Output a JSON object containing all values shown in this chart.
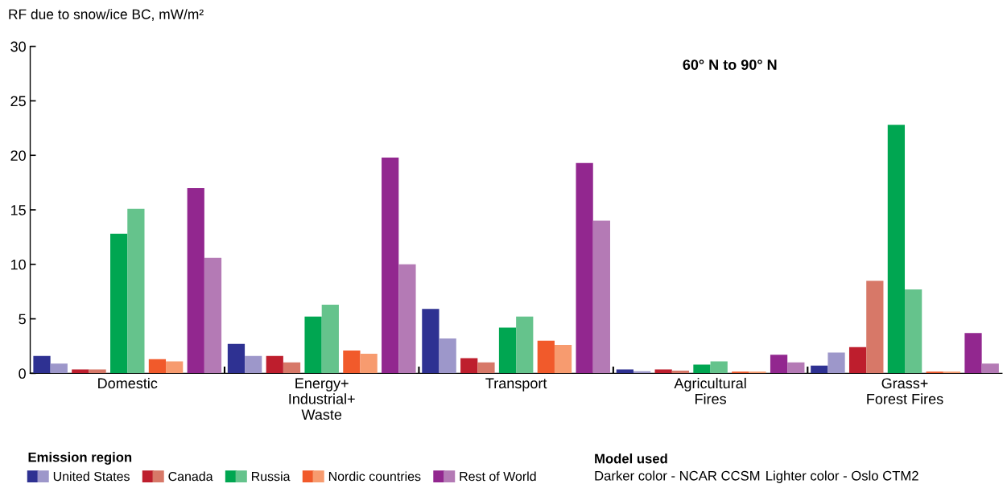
{
  "chart_data": {
    "type": "bar",
    "subtitle": "60° N to 90° N",
    "ylabel": "RF due to snow/ice BC, mW/m²",
    "legend_title": "Emission region",
    "legend": "bottom left",
    "categories": [
      "Domestic",
      "Energy+\nIndustrial+\nWaste",
      "Transport",
      "Agricultural\nFires",
      "Grass+\nForest Fires"
    ],
    "series": [
      {
        "name": "United States",
        "color": "#2e3192",
        "values": [
          1.6,
          2.7,
          5.9,
          0.35,
          0.7
        ]
      },
      {
        "color": "#9d97ca",
        "values": [
          0.9,
          1.6,
          3.2,
          0.2,
          1.9
        ]
      },
      {
        "name": "Canada",
        "color": "#be1e2d",
        "values": [
          0.35,
          1.6,
          1.4,
          0.35,
          2.4
        ]
      },
      {
        "color": "#d77868",
        "values": [
          0.35,
          1.0,
          1.0,
          0.25,
          8.5
        ]
      },
      {
        "name": "Russia",
        "color": "#00a651",
        "values": [
          12.8,
          5.2,
          4.2,
          0.8,
          22.8
        ]
      },
      {
        "color": "#65c38c",
        "values": [
          15.1,
          6.3,
          5.2,
          1.1,
          7.7
        ]
      },
      {
        "name": "Nordic countries",
        "color": "#f15a2b",
        "values": [
          1.3,
          2.1,
          3.0,
          0.15,
          0.15
        ]
      },
      {
        "color": "#f79b6f",
        "values": [
          1.1,
          1.8,
          2.6,
          0.15,
          0.15
        ]
      },
      {
        "name": "Rest of World",
        "color": "#92278f",
        "values": [
          17.0,
          19.8,
          19.3,
          1.7,
          3.7
        ]
      },
      {
        "color": "#b47ab5",
        "values": [
          10.6,
          10.0,
          14.0,
          1.0,
          0.9
        ]
      }
    ],
    "ylim": [
      0,
      30
    ],
    "yticks": [
      0,
      5,
      10,
      15,
      20,
      25,
      30
    ],
    "grid": false,
    "annotations": [
      "Model used",
      "Darker color - NCAR CCSM",
      "Lighter color - Oslo CTM2"
    ]
  }
}
